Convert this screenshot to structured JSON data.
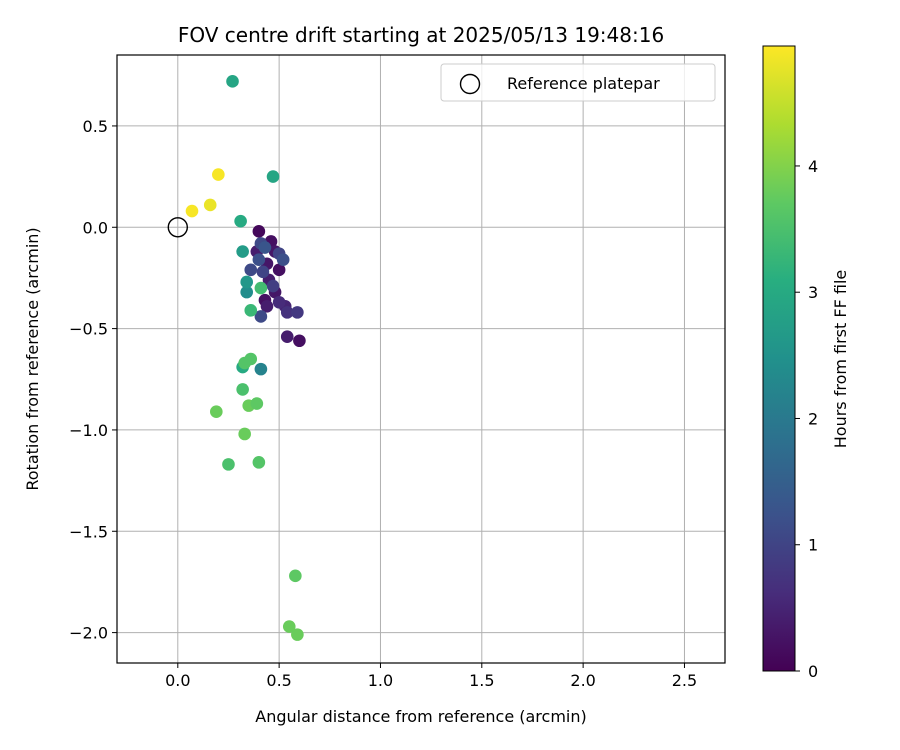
{
  "chart_data": {
    "type": "scatter",
    "title": "FOV centre drift starting at 2025/05/13 19:48:16",
    "xlabel": "Angular distance from reference (arcmin)",
    "ylabel": "Rotation from reference (arcmin)",
    "xlim": [
      -0.3,
      2.7
    ],
    "ylim": [
      -2.15,
      0.85
    ],
    "xticks": [
      0.0,
      0.5,
      1.0,
      1.5,
      2.0,
      2.5
    ],
    "xtick_labels": [
      "0.0",
      "0.5",
      "1.0",
      "1.5",
      "2.0",
      "2.5"
    ],
    "yticks": [
      0.5,
      0.0,
      -0.5,
      -1.0,
      -1.5,
      -2.0
    ],
    "ytick_labels": [
      "0.5",
      "0.0",
      "−0.5",
      "−1.0",
      "−1.5",
      "−2.0"
    ],
    "grid": true,
    "legend": {
      "position": "top-right",
      "entries": [
        "Reference platepar"
      ]
    },
    "reference_point": {
      "x": 0.0,
      "y": 0.0,
      "label": "Reference platepar",
      "marker": "open-circle"
    },
    "colorbar": {
      "label": "Hours from first FF file",
      "range": [
        0,
        4.95
      ],
      "ticks": [
        0,
        1,
        2,
        3,
        4
      ],
      "tick_labels": [
        "0",
        "1",
        "2",
        "3",
        "4"
      ],
      "colormap": "viridis"
    },
    "points": [
      {
        "x": 0.4,
        "y": -0.02,
        "h": 0.1
      },
      {
        "x": 0.46,
        "y": -0.07,
        "h": 0.2
      },
      {
        "x": 0.48,
        "y": -0.12,
        "h": 0.3
      },
      {
        "x": 0.39,
        "y": -0.12,
        "h": 0.4
      },
      {
        "x": 0.44,
        "y": -0.18,
        "h": 0.3
      },
      {
        "x": 0.5,
        "y": -0.21,
        "h": 0.2
      },
      {
        "x": 0.45,
        "y": -0.26,
        "h": 0.4
      },
      {
        "x": 0.48,
        "y": -0.32,
        "h": 0.3
      },
      {
        "x": 0.43,
        "y": -0.36,
        "h": 0.2
      },
      {
        "x": 0.53,
        "y": -0.39,
        "h": 0.5
      },
      {
        "x": 0.5,
        "y": -0.37,
        "h": 0.6
      },
      {
        "x": 0.44,
        "y": -0.39,
        "h": 0.4
      },
      {
        "x": 0.54,
        "y": -0.54,
        "h": 0.4
      },
      {
        "x": 0.6,
        "y": -0.56,
        "h": 0.2
      },
      {
        "x": 0.54,
        "y": -0.42,
        "h": 0.7
      },
      {
        "x": 0.59,
        "y": -0.42,
        "h": 0.8
      },
      {
        "x": 0.47,
        "y": -0.29,
        "h": 0.9
      },
      {
        "x": 0.5,
        "y": -0.13,
        "h": 1.0
      },
      {
        "x": 0.52,
        "y": -0.16,
        "h": 1.2
      },
      {
        "x": 0.41,
        "y": -0.08,
        "h": 1.1
      },
      {
        "x": 0.43,
        "y": -0.1,
        "h": 1.3
      },
      {
        "x": 0.4,
        "y": -0.16,
        "h": 1.2
      },
      {
        "x": 0.42,
        "y": -0.22,
        "h": 1.0
      },
      {
        "x": 0.36,
        "y": -0.21,
        "h": 1.1
      },
      {
        "x": 0.41,
        "y": -0.44,
        "h": 1.1
      },
      {
        "x": 0.41,
        "y": -0.7,
        "h": 2.2
      },
      {
        "x": 0.34,
        "y": -0.32,
        "h": 2.4
      },
      {
        "x": 0.34,
        "y": -0.27,
        "h": 2.6
      },
      {
        "x": 0.32,
        "y": -0.12,
        "h": 2.7
      },
      {
        "x": 0.31,
        "y": 0.03,
        "h": 3.0
      },
      {
        "x": 0.47,
        "y": 0.25,
        "h": 2.9
      },
      {
        "x": 0.27,
        "y": 0.72,
        "h": 2.9
      },
      {
        "x": 0.32,
        "y": -0.69,
        "h": 3.0
      },
      {
        "x": 0.41,
        "y": -0.3,
        "h": 3.4
      },
      {
        "x": 0.36,
        "y": -0.41,
        "h": 3.3
      },
      {
        "x": 0.33,
        "y": -0.67,
        "h": 3.6
      },
      {
        "x": 0.36,
        "y": -0.65,
        "h": 3.6
      },
      {
        "x": 0.32,
        "y": -0.8,
        "h": 3.5
      },
      {
        "x": 0.19,
        "y": -0.91,
        "h": 3.8
      },
      {
        "x": 0.35,
        "y": -0.88,
        "h": 3.8
      },
      {
        "x": 0.39,
        "y": -0.87,
        "h": 3.7
      },
      {
        "x": 0.33,
        "y": -1.02,
        "h": 3.8
      },
      {
        "x": 0.25,
        "y": -1.17,
        "h": 3.5
      },
      {
        "x": 0.4,
        "y": -1.16,
        "h": 3.6
      },
      {
        "x": 0.58,
        "y": -1.72,
        "h": 3.7
      },
      {
        "x": 0.55,
        "y": -1.97,
        "h": 3.8
      },
      {
        "x": 0.59,
        "y": -2.01,
        "h": 3.8
      },
      {
        "x": 0.2,
        "y": 0.26,
        "h": 4.9
      },
      {
        "x": 0.16,
        "y": 0.11,
        "h": 4.8
      },
      {
        "x": 0.07,
        "y": 0.08,
        "h": 4.9
      }
    ]
  }
}
